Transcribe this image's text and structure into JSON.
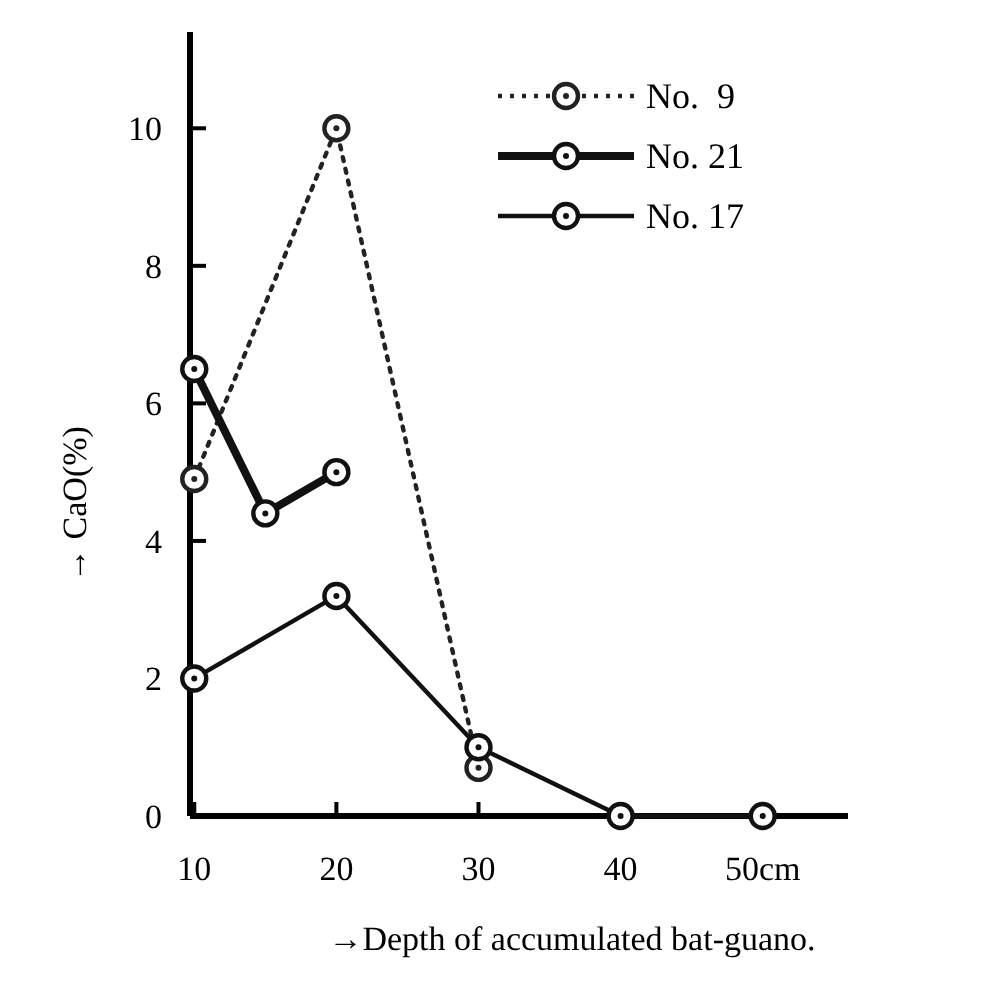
{
  "chart_data": {
    "type": "line",
    "xlabel": "→Depth of accumulated bat-guano.",
    "ylabel": "→ CaO(%)",
    "xlim": [
      9.7,
      56
    ],
    "ylim": [
      0,
      11.4
    ],
    "xticks": [
      10,
      20,
      30,
      40,
      {
        "value": 50,
        "label": "50cm"
      }
    ],
    "yticks": [
      0,
      2,
      4,
      6,
      8,
      10
    ],
    "marker": "circle",
    "legend": "top right",
    "grid": false,
    "series": [
      {
        "name": "No.  9",
        "color": "#222222",
        "line_style": "dotted",
        "x": [
          10,
          20,
          30
        ],
        "values": [
          4.9,
          10.0,
          0.7
        ]
      },
      {
        "name": "No. 21",
        "color": "#111111",
        "line_style": "solid",
        "x": [
          10,
          15,
          20
        ],
        "values": [
          6.5,
          4.4,
          5.0
        ]
      },
      {
        "name": "No. 17",
        "color": "#111111",
        "line_style": "solid",
        "x": [
          10,
          20,
          30,
          40,
          50
        ],
        "values": [
          2.0,
          3.2,
          1.0,
          0,
          0
        ]
      }
    ]
  }
}
